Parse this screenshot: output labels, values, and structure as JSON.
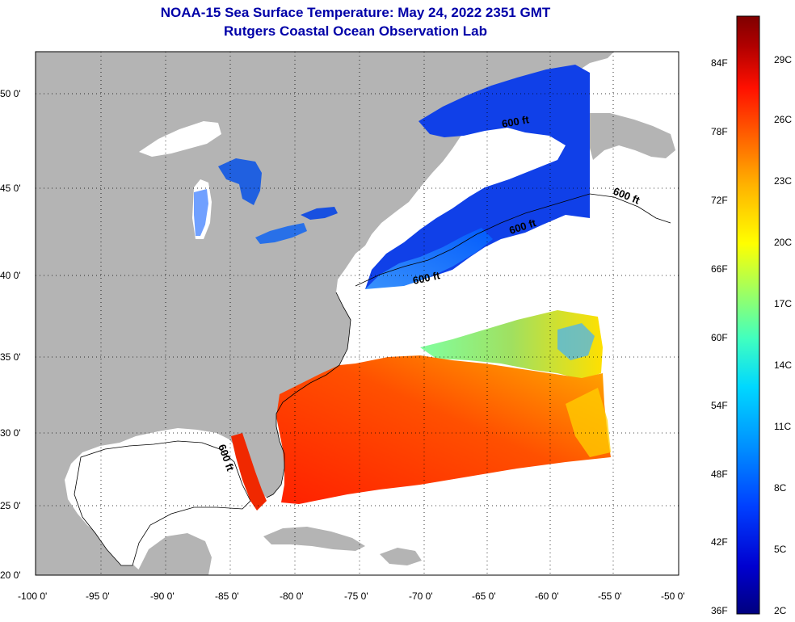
{
  "title": "NOAA-15 Sea Surface Temperature:  May 24, 2022 2351 GMT",
  "subtitle": "Rutgers Coastal Ocean Observation Lab",
  "lat_labels": [
    "50 0'",
    "45 0'",
    "40 0'",
    "35 0'",
    "30 0'",
    "25 0'",
    "20 0'"
  ],
  "lon_labels": [
    "-100 0'",
    "-95 0'",
    "-90 0'",
    "-85 0'",
    "-80 0'",
    "-75 0'",
    "-70 0'",
    "-65 0'",
    "-60 0'",
    "-55 0'",
    "-50 0'"
  ],
  "contour_labels": [
    "600 ft",
    "600 ft",
    "600 ft",
    "600 ft",
    "600 ft"
  ],
  "colorbar": {
    "f_labels": [
      "84F",
      "78F",
      "72F",
      "66F",
      "60F",
      "54F",
      "48F",
      "42F",
      "36F"
    ],
    "c_labels": [
      "29C",
      "26C",
      "23C",
      "20C",
      "17C",
      "14C",
      "11C",
      "8C",
      "5C",
      "2C"
    ],
    "colors": [
      "#00007f",
      "#0000d0",
      "#0040ff",
      "#0090ff",
      "#00d8ff",
      "#40ffc0",
      "#a0ff60",
      "#ffff00",
      "#ffb000",
      "#ff6000",
      "#ff1000",
      "#b00000",
      "#7f0000"
    ]
  },
  "colors": {
    "land": "#b4b4b4",
    "ocean_nodata": "#ffffff",
    "title": "#0000a8"
  }
}
